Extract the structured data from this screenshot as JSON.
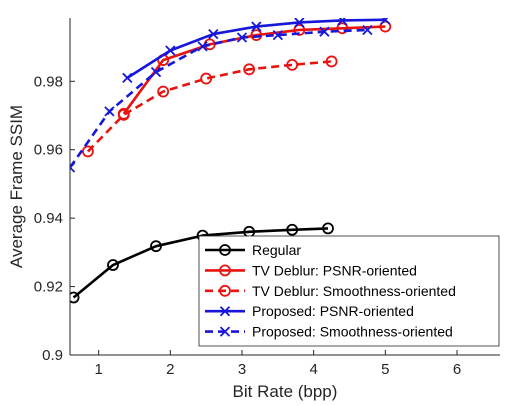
{
  "chart_data": {
    "type": "line",
    "title": "",
    "xlabel": "Bit Rate (bpp)",
    "ylabel": "Average Frame SSIM",
    "xlim": [
      0.6,
      6.6
    ],
    "ylim": [
      0.9,
      0.9985
    ],
    "xticks": [
      1,
      2,
      3,
      4,
      5,
      6
    ],
    "yticks": [
      0.9,
      0.92,
      0.94,
      0.96,
      0.98
    ],
    "ytick_labels": [
      "0.9",
      "0.92",
      "0.94",
      "0.96",
      "0.98"
    ],
    "grid": false,
    "legend_position": "bottom-right",
    "series": [
      {
        "name": "Regular",
        "color": "#000000",
        "line_style": "solid",
        "marker": "circle",
        "x": [
          0.65,
          1.2,
          1.8,
          2.45,
          3.1,
          3.7,
          4.2
        ],
        "y": [
          0.9168,
          0.9263,
          0.9318,
          0.9349,
          0.936,
          0.9366,
          0.937
        ]
      },
      {
        "name": "TV Deblur: PSNR-oriented",
        "color": "#e8130f",
        "line_style": "solid",
        "marker": "circle",
        "x": [
          1.35,
          1.9,
          2.55,
          3.2,
          3.8,
          4.4,
          5.0
        ],
        "y": [
          0.9705,
          0.9862,
          0.9908,
          0.9935,
          0.995,
          0.9955,
          0.996
        ]
      },
      {
        "name": "TV Deblur: Smoothness-oriented",
        "color": "#e8130f",
        "line_style": "dashed",
        "marker": "circle",
        "x": [
          0.85,
          1.35,
          1.9,
          2.5,
          3.1,
          3.7,
          4.25
        ],
        "y": [
          0.9595,
          0.9702,
          0.977,
          0.9808,
          0.9835,
          0.9848,
          0.9858
        ]
      },
      {
        "name": "Proposed: PSNR-oriented",
        "color": "#1717d9",
        "line_style": "solid",
        "marker": "x",
        "x": [
          1.4,
          2.0,
          2.6,
          3.2,
          3.8,
          4.4,
          5.0
        ],
        "y": [
          0.981,
          0.989,
          0.9938,
          0.996,
          0.9972,
          0.9978,
          0.998
        ]
      },
      {
        "name": "Proposed: Smoothness-oriented",
        "color": "#1717d9",
        "line_style": "dashed",
        "marker": "x",
        "x": [
          0.6,
          1.15,
          1.8,
          2.45,
          3.0,
          3.5,
          4.15,
          4.75
        ],
        "y": [
          0.9548,
          0.9712,
          0.9827,
          0.9902,
          0.9928,
          0.9935,
          0.9945,
          0.995
        ]
      }
    ]
  }
}
